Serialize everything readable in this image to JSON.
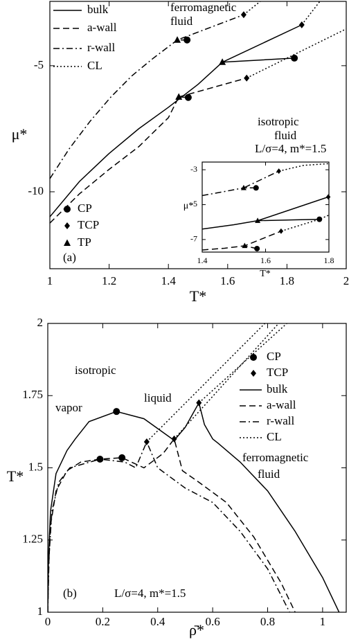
{
  "chart_data": [
    {
      "type": "line",
      "xlabel": "T*",
      "ylabel": "μ*",
      "xlim": [
        1,
        2
      ],
      "ylim": [
        -13.05,
        -2.45
      ],
      "xticks": [
        1,
        1.2,
        1.4,
        1.6,
        1.8,
        2
      ],
      "yticks": [
        -10,
        -5
      ],
      "annotations": [
        "ferromagnetic",
        "fluid",
        "isotropic",
        "fluid",
        "L/σ=4,  m*=1.5",
        "(a)"
      ],
      "series": [
        {
          "name": "bulk",
          "style": "solid",
          "color": "#000000",
          "x": [
            1,
            1.1,
            1.199,
            1.3,
            1.4,
            1.5,
            1.582,
            null,
            1.825,
            1.582,
            1.85
          ],
          "values": [
            -10.99,
            -9.59,
            -8.49,
            -7.5,
            -6.65,
            -5.74,
            -4.86,
            null,
            -4.7,
            -4.86,
            -3.38
          ]
        },
        {
          "name": "a-wall",
          "style": "dashed",
          "color": "#000000",
          "x": [
            1,
            1.1,
            1.199,
            1.3,
            1.4,
            1.435,
            null,
            1.467,
            1.435,
            1.664
          ],
          "values": [
            -11.24,
            -10.08,
            -9.12,
            -8.21,
            -7.06,
            -6.24,
            null,
            -6.26,
            -6.24,
            -5.49
          ]
        },
        {
          "name": "r-wall",
          "style": "dashdot",
          "color": "#000000",
          "x": [
            1,
            1.065,
            1.136,
            1.206,
            1.276,
            1.346,
            1.43,
            null,
            1.463,
            1.43,
            1.654
          ],
          "values": [
            -9.48,
            -8.3,
            -7.2,
            -6.24,
            -5.41,
            -4.73,
            -3.98,
            null,
            -3.98,
            -3.98,
            -2.98
          ]
        },
        {
          "name": "CL",
          "style": "dotted",
          "color": "#000000",
          "x": [
            1.654,
            1.71,
            null,
            1.85,
            1.911,
            null,
            1.664,
            2.0
          ],
          "values": [
            -2.98,
            -2.45,
            null,
            -3.38,
            -2.45,
            null,
            -5.49,
            -3.54
          ]
        },
        {
          "name": "CP",
          "marker": "circle",
          "color": "#000000",
          "x": [
            1.825,
            1.467,
            1.463
          ],
          "values": [
            -4.7,
            -6.26,
            -3.98
          ]
        },
        {
          "name": "TCP",
          "marker": "diamond",
          "color": "#000000",
          "x": [
            1.85,
            1.664,
            1.654
          ],
          "values": [
            -3.38,
            -5.49,
            -2.98
          ]
        },
        {
          "name": "TP",
          "marker": "triangle",
          "color": "#000000",
          "x": [
            1.582,
            1.435,
            1.43
          ],
          "values": [
            -4.86,
            -6.24,
            -3.98
          ]
        }
      ]
    },
    {
      "type": "line",
      "xlabel": "T*",
      "ylabel": "μ*",
      "xlim": [
        1.4,
        1.8
      ],
      "ylim": [
        -7.72,
        -2.56
      ],
      "xticks": [
        1.4,
        1.6,
        1.8
      ],
      "yticks": [
        -7,
        -5,
        -3
      ],
      "series": [
        {
          "style": "solid",
          "color": "#000000",
          "x": [
            1.4,
            1.5,
            1.575,
            null,
            1.77,
            1.575,
            1.798
          ],
          "values": [
            -6.4,
            -6.15,
            -5.92,
            null,
            -5.84,
            -5.92,
            -4.56
          ]
        },
        {
          "style": "dashed",
          "color": "#000000",
          "x": [
            1.4,
            1.47,
            1.534,
            null,
            1.573,
            1.534,
            1.649
          ],
          "values": [
            -7.6,
            -7.5,
            -7.36,
            null,
            -7.52,
            -7.36,
            -6.52
          ]
        },
        {
          "style": "dashdot",
          "color": "#000000",
          "x": [
            1.4,
            1.47,
            1.531,
            null,
            1.57,
            1.531,
            1.642
          ],
          "values": [
            -4.48,
            -4.25,
            -4.04,
            null,
            -4.04,
            -4.04,
            -3.08
          ]
        },
        {
          "style": "dotted",
          "color": "#000000",
          "x": [
            1.642,
            1.72,
            1.8,
            null,
            1.649,
            1.77,
            1.8
          ],
          "values": [
            -3.08,
            -2.75,
            -2.65,
            null,
            -6.52,
            -5.84,
            -5.6
          ]
        },
        {
          "marker": "circle",
          "color": "#000000",
          "x": [
            1.77,
            1.573,
            1.57
          ],
          "values": [
            -5.84,
            -7.52,
            -4.04
          ]
        },
        {
          "marker": "diamond",
          "color": "#000000",
          "x": [
            1.798,
            1.649,
            1.642
          ],
          "values": [
            -4.56,
            -6.52,
            -3.08
          ]
        },
        {
          "marker": "triangle",
          "color": "#000000",
          "x": [
            1.575,
            1.534,
            1.531
          ],
          "values": [
            -5.92,
            -7.36,
            -4.04
          ]
        }
      ]
    },
    {
      "type": "line",
      "xlabel": "ρ̄*",
      "ylabel": "T*",
      "xlim": [
        0,
        1.086
      ],
      "ylim": [
        1,
        2
      ],
      "xticks": [
        0,
        0.2,
        0.4,
        0.6,
        0.8,
        1
      ],
      "yticks": [
        1,
        1.25,
        1.5,
        1.75,
        2
      ],
      "annotations": [
        "isotropic",
        "vapor",
        "liquid",
        "ferromagnetic",
        "fluid",
        "L/σ=4,  m*=1.5",
        "(b)"
      ],
      "series": [
        {
          "name": "bulk",
          "style": "solid",
          "color": "#000000",
          "x": [
            0,
            0.003,
            0.01,
            0.03,
            0.07,
            0.1,
            0.15,
            0.25,
            0.35,
            0.46,
            0.5,
            0.55,
            0.57,
            0.6,
            0.62,
            0.7,
            0.8,
            0.9,
            1.0,
            1.06
          ],
          "values": [
            1,
            1.2,
            1.35,
            1.48,
            1.56,
            1.6,
            1.66,
            1.695,
            1.67,
            1.595,
            1.64,
            1.725,
            1.65,
            1.6,
            1.585,
            1.52,
            1.42,
            1.28,
            1.12,
            1.0
          ]
        },
        {
          "name": "a-wall",
          "style": "dashed",
          "color": "#000000",
          "x": [
            0,
            0.003,
            0.01,
            0.03,
            0.07,
            0.12,
            0.19,
            0.27,
            0.35,
            0.42,
            0.46,
            0.49,
            0.55,
            0.65,
            0.75,
            0.85,
            0.9
          ],
          "values": [
            1,
            1.15,
            1.3,
            1.42,
            1.49,
            1.52,
            1.53,
            1.535,
            1.5,
            1.55,
            1.6,
            1.49,
            1.45,
            1.38,
            1.26,
            1.1,
            1.0
          ]
        },
        {
          "name": "r-wall",
          "style": "dashdot",
          "color": "#000000",
          "x": [
            0,
            0.005,
            0.015,
            0.04,
            0.08,
            0.19,
            0.28,
            0.32,
            0.36,
            0.4,
            0.5,
            0.6,
            0.7,
            0.8,
            0.88
          ],
          "values": [
            1,
            1.2,
            1.35,
            1.45,
            1.5,
            1.53,
            1.52,
            1.5,
            1.59,
            1.5,
            1.43,
            1.38,
            1.28,
            1.15,
            1.0
          ]
        },
        {
          "name": "CL",
          "style": "dotted",
          "color": "#000000",
          "x": [
            0.36,
            0.79,
            null,
            0.46,
            0.84,
            null,
            0.55,
            0.87
          ],
          "values": [
            1.59,
            2,
            null,
            1.6,
            2,
            null,
            1.725,
            2
          ]
        },
        {
          "name": "CP",
          "marker": "circle",
          "color": "#000000",
          "x": [
            0.25,
            0.19,
            0.27
          ],
          "values": [
            1.695,
            1.53,
            1.535
          ]
        },
        {
          "name": "TCP",
          "marker": "diamond",
          "color": "#000000",
          "x": [
            0.55,
            0.36,
            0.46
          ],
          "values": [
            1.725,
            1.59,
            1.6
          ]
        }
      ]
    }
  ]
}
